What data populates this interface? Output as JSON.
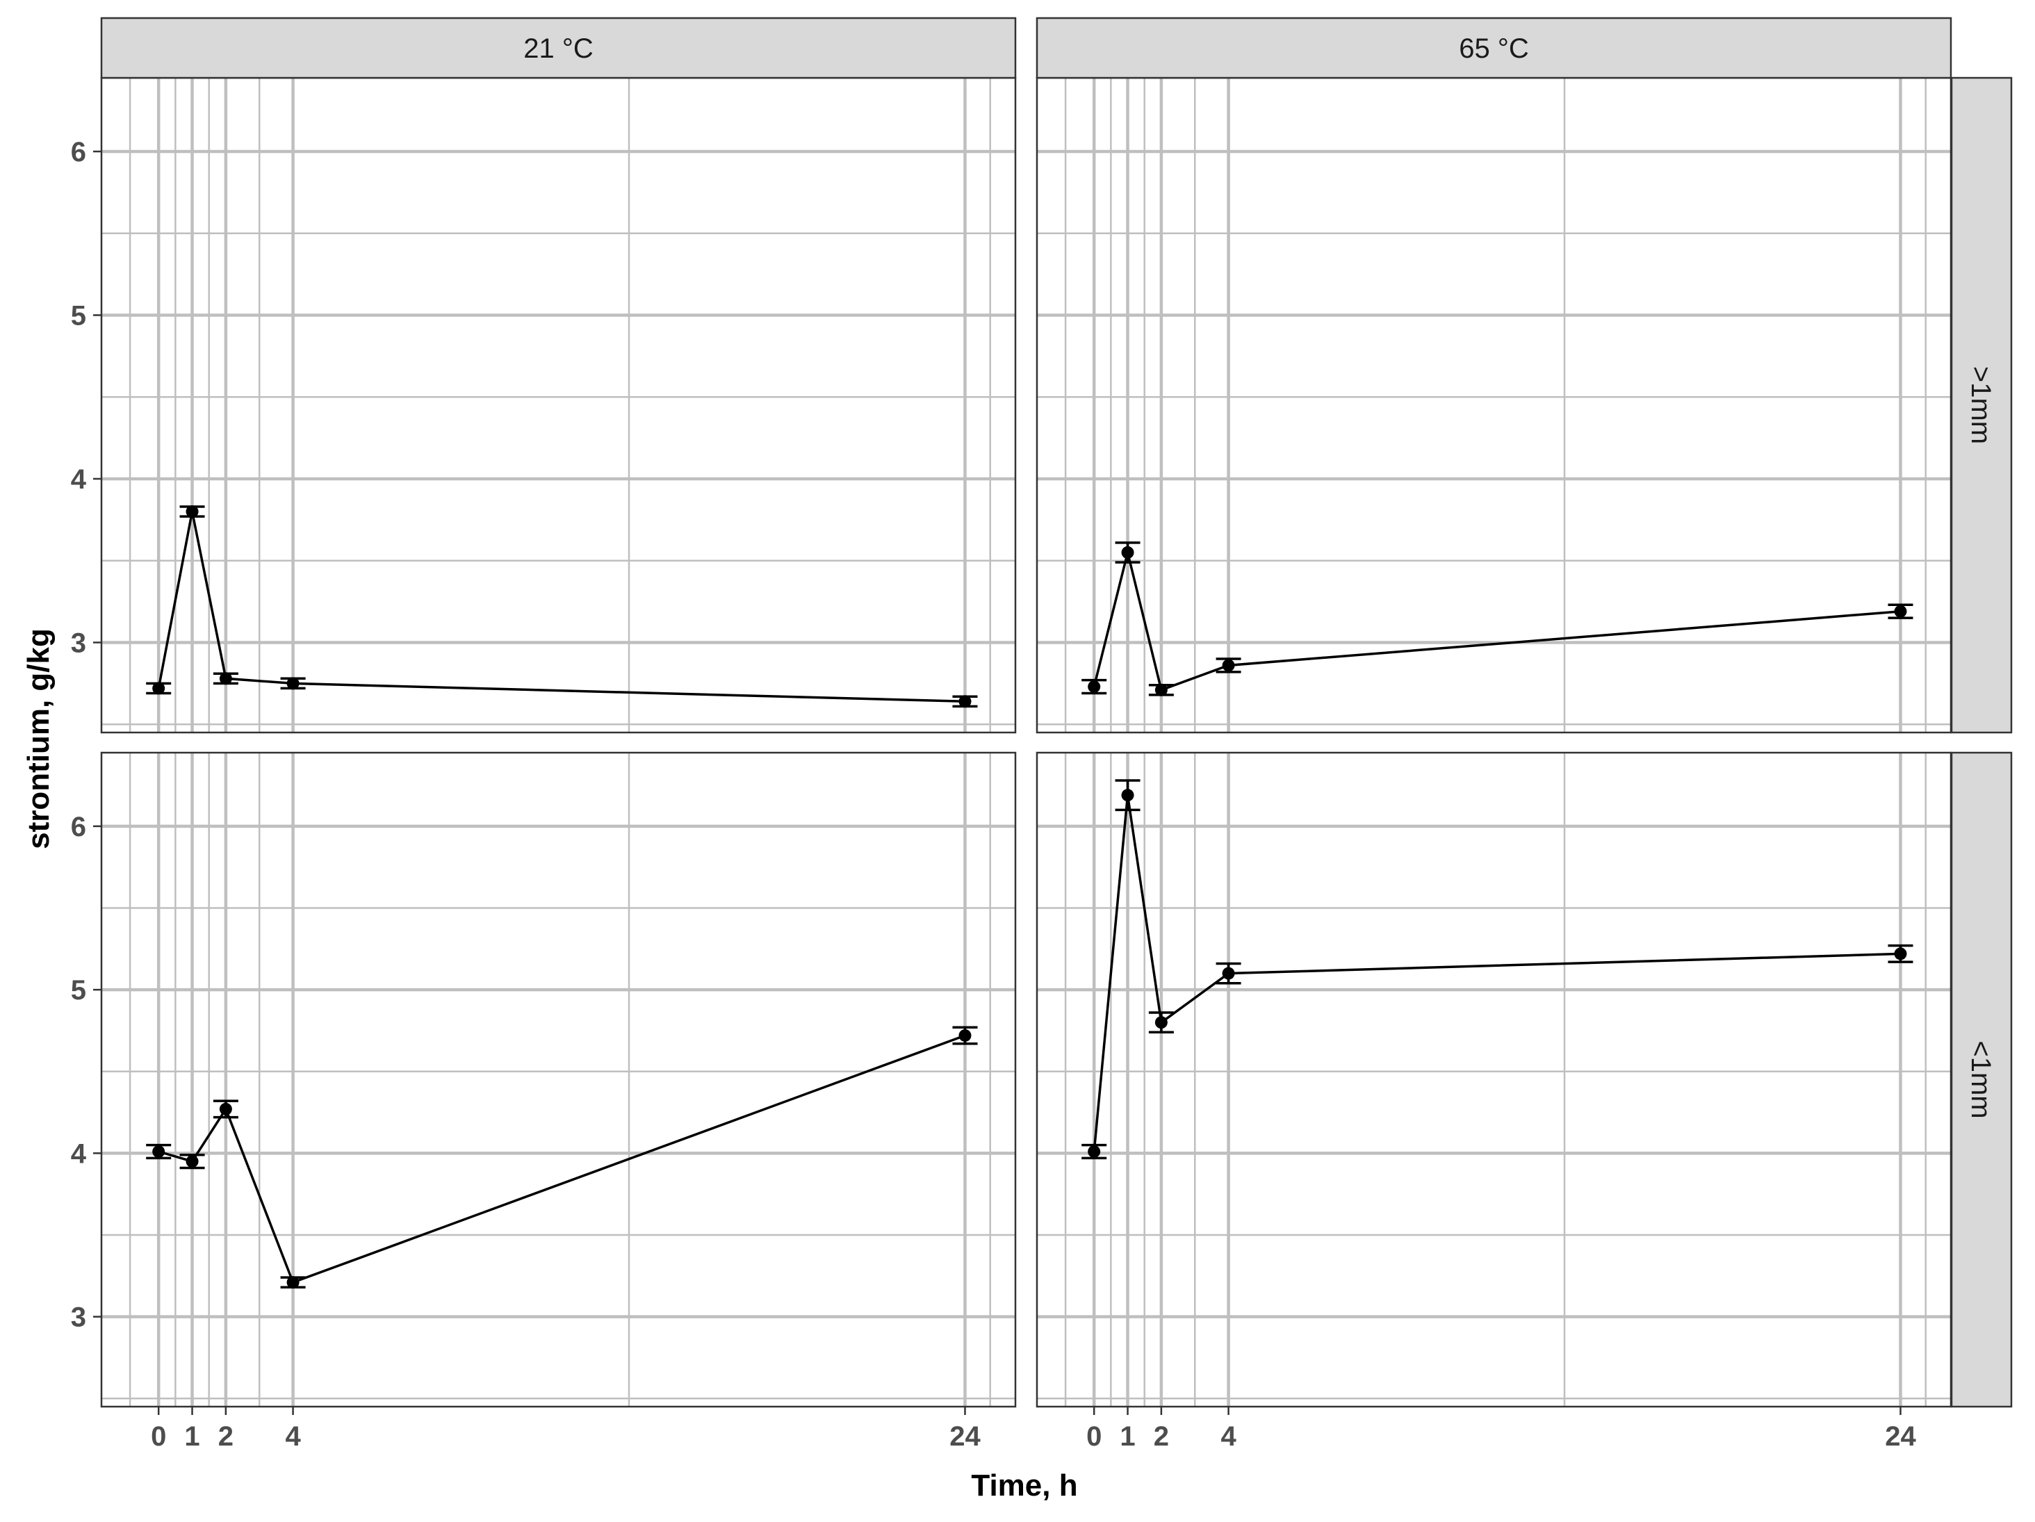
{
  "chart_data": {
    "type": "line",
    "xlabel": "Time, h",
    "ylabel": "strontium, g/kg",
    "x_ticks": [
      0,
      1,
      2,
      4,
      24
    ],
    "y_ticks": [
      3,
      4,
      5,
      6
    ],
    "xlim": [
      -1.7,
      25.5
    ],
    "ylim": [
      2.45,
      6.45
    ],
    "columns": [
      "21 °C",
      "65 °C"
    ],
    "rows": [
      ">1mm",
      "<1mm"
    ],
    "grid": true,
    "colors": {
      "strip_fill": "#d9d9d9",
      "grid": "#bfbfbf",
      "series": "#000000",
      "frame": "#333333"
    },
    "panels": [
      {
        "column": "21 °C",
        "row": ">1mm",
        "x": [
          0,
          1,
          2,
          4,
          24
        ],
        "y": [
          2.72,
          3.8,
          2.78,
          2.75,
          2.64
        ],
        "err": [
          0.03,
          0.03,
          0.03,
          0.03,
          0.03
        ]
      },
      {
        "column": "65 °C",
        "row": ">1mm",
        "x": [
          0,
          1,
          2,
          4,
          24
        ],
        "y": [
          2.73,
          3.55,
          2.71,
          2.86,
          3.19
        ],
        "err": [
          0.04,
          0.06,
          0.03,
          0.04,
          0.04
        ]
      },
      {
        "column": "21 °C",
        "row": "<1mm",
        "x": [
          0,
          1,
          2,
          4,
          24
        ],
        "y": [
          4.01,
          3.95,
          4.27,
          3.21,
          4.72
        ],
        "err": [
          0.04,
          0.04,
          0.05,
          0.03,
          0.05
        ]
      },
      {
        "column": "65 °C",
        "row": "<1mm",
        "x": [
          0,
          1,
          2,
          4,
          24
        ],
        "y": [
          4.01,
          6.19,
          4.8,
          5.1,
          5.22
        ],
        "err": [
          0.04,
          0.09,
          0.06,
          0.06,
          0.05
        ]
      }
    ]
  }
}
